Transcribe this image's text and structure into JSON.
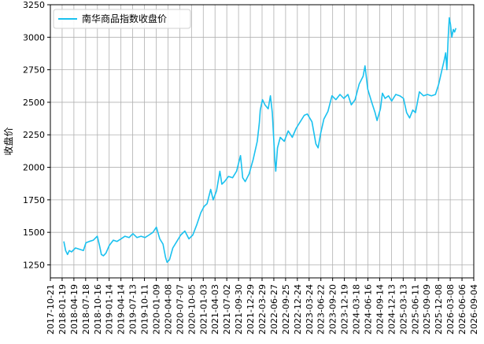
{
  "chart_data": {
    "type": "line",
    "title": "",
    "xlabel": "",
    "ylabel": "收盘价",
    "ylim": [
      1150,
      3250
    ],
    "y_ticks": [
      1250,
      1500,
      1750,
      2000,
      2250,
      2500,
      2750,
      3000,
      3250
    ],
    "x_ticks": [
      "2017-10-21",
      "2018-01-19",
      "2018-04-19",
      "2018-07-18",
      "2018-10-16",
      "2019-01-14",
      "2019-04-14",
      "2019-07-13",
      "2019-10-11",
      "2020-01-09",
      "2020-04-08",
      "2020-07-07",
      "2020-10-05",
      "2021-01-03",
      "2021-04-03",
      "2021-07-02",
      "2021-09-30",
      "2021-12-29",
      "2022-03-29",
      "2022-06-27",
      "2022-09-25",
      "2022-12-24",
      "2023-03-24",
      "2023-06-22",
      "2023-09-20",
      "2023-12-19",
      "2024-03-18",
      "2024-06-16",
      "2024-09-14",
      "2024-12-13",
      "2025-03-13",
      "2025-06-11",
      "2025-09-09",
      "2025-12-08",
      "2026-03-08",
      "2026-06-06",
      "2026-09-04"
    ],
    "xlim": [
      "2017-10-21",
      "2026-09-04"
    ],
    "grid": true,
    "legend_position": "top-left",
    "series": [
      {
        "name": "南华商品指数收盘价",
        "color": "#1ac1ef",
        "points": [
          [
            "2018-02-01",
            1430
          ],
          [
            "2018-02-15",
            1360
          ],
          [
            "2018-03-01",
            1330
          ],
          [
            "2018-03-15",
            1360
          ],
          [
            "2018-04-01",
            1350
          ],
          [
            "2018-05-01",
            1380
          ],
          [
            "2018-06-01",
            1370
          ],
          [
            "2018-07-01",
            1360
          ],
          [
            "2018-07-20",
            1420
          ],
          [
            "2018-08-15",
            1430
          ],
          [
            "2018-09-15",
            1440
          ],
          [
            "2018-10-15",
            1470
          ],
          [
            "2018-11-01",
            1400
          ],
          [
            "2018-11-15",
            1330
          ],
          [
            "2018-12-01",
            1320
          ],
          [
            "2018-12-20",
            1340
          ],
          [
            "2019-01-15",
            1400
          ],
          [
            "2019-02-15",
            1440
          ],
          [
            "2019-03-15",
            1430
          ],
          [
            "2019-04-15",
            1450
          ],
          [
            "2019-05-15",
            1470
          ],
          [
            "2019-06-15",
            1460
          ],
          [
            "2019-07-15",
            1490
          ],
          [
            "2019-08-15",
            1460
          ],
          [
            "2019-09-15",
            1470
          ],
          [
            "2019-10-15",
            1460
          ],
          [
            "2019-11-15",
            1480
          ],
          [
            "2019-12-15",
            1500
          ],
          [
            "2020-01-10",
            1540
          ],
          [
            "2020-02-05",
            1450
          ],
          [
            "2020-03-01",
            1410
          ],
          [
            "2020-03-20",
            1310
          ],
          [
            "2020-04-01",
            1270
          ],
          [
            "2020-04-20",
            1290
          ],
          [
            "2020-05-15",
            1380
          ],
          [
            "2020-06-15",
            1430
          ],
          [
            "2020-07-15",
            1480
          ],
          [
            "2020-08-15",
            1510
          ],
          [
            "2020-09-15",
            1450
          ],
          [
            "2020-10-15",
            1480
          ],
          [
            "2020-11-15",
            1560
          ],
          [
            "2020-12-15",
            1650
          ],
          [
            "2021-01-10",
            1700
          ],
          [
            "2021-02-01",
            1720
          ],
          [
            "2021-03-01",
            1830
          ],
          [
            "2021-03-20",
            1750
          ],
          [
            "2021-04-15",
            1820
          ],
          [
            "2021-05-10",
            1970
          ],
          [
            "2021-05-25",
            1870
          ],
          [
            "2021-06-15",
            1890
          ],
          [
            "2021-07-15",
            1930
          ],
          [
            "2021-08-15",
            1920
          ],
          [
            "2021-09-15",
            1970
          ],
          [
            "2021-10-15",
            2090
          ],
          [
            "2021-11-01",
            1920
          ],
          [
            "2021-11-20",
            1890
          ],
          [
            "2021-12-20",
            1950
          ],
          [
            "2022-01-20",
            2060
          ],
          [
            "2022-02-20",
            2200
          ],
          [
            "2022-03-08",
            2340
          ],
          [
            "2022-03-15",
            2440
          ],
          [
            "2022-04-01",
            2520
          ],
          [
            "2022-04-20",
            2480
          ],
          [
            "2022-05-15",
            2450
          ],
          [
            "2022-06-01",
            2550
          ],
          [
            "2022-06-15",
            2420
          ],
          [
            "2022-07-05",
            2050
          ],
          [
            "2022-07-12",
            1970
          ],
          [
            "2022-07-25",
            2150
          ],
          [
            "2022-08-15",
            2230
          ],
          [
            "2022-09-15",
            2200
          ],
          [
            "2022-10-15",
            2280
          ],
          [
            "2022-11-15",
            2230
          ],
          [
            "2022-12-15",
            2300
          ],
          [
            "2023-01-15",
            2350
          ],
          [
            "2023-02-15",
            2400
          ],
          [
            "2023-03-10",
            2410
          ],
          [
            "2023-04-15",
            2350
          ],
          [
            "2023-05-15",
            2180
          ],
          [
            "2023-06-01",
            2150
          ],
          [
            "2023-06-20",
            2260
          ],
          [
            "2023-07-15",
            2370
          ],
          [
            "2023-08-15",
            2430
          ],
          [
            "2023-09-15",
            2550
          ],
          [
            "2023-10-15",
            2520
          ],
          [
            "2023-11-15",
            2560
          ],
          [
            "2023-12-15",
            2530
          ],
          [
            "2024-01-15",
            2560
          ],
          [
            "2024-02-10",
            2480
          ],
          [
            "2024-03-10",
            2520
          ],
          [
            "2024-04-10",
            2640
          ],
          [
            "2024-05-10",
            2700
          ],
          [
            "2024-05-25",
            2780
          ],
          [
            "2024-06-15",
            2600
          ],
          [
            "2024-07-15",
            2500
          ],
          [
            "2024-08-10",
            2420
          ],
          [
            "2024-08-25",
            2360
          ],
          [
            "2024-09-20",
            2450
          ],
          [
            "2024-10-05",
            2570
          ],
          [
            "2024-10-25",
            2530
          ],
          [
            "2024-11-20",
            2550
          ],
          [
            "2024-12-15",
            2510
          ],
          [
            "2025-01-15",
            2560
          ],
          [
            "2025-02-15",
            2550
          ],
          [
            "2025-03-15",
            2530
          ],
          [
            "2025-04-08",
            2420
          ],
          [
            "2025-05-01",
            2380
          ],
          [
            "2025-05-25",
            2440
          ],
          [
            "2025-06-15",
            2420
          ],
          [
            "2025-07-15",
            2580
          ],
          [
            "2025-08-15",
            2550
          ],
          [
            "2025-09-15",
            2560
          ],
          [
            "2025-10-15",
            2550
          ],
          [
            "2025-11-15",
            2560
          ],
          [
            "2025-12-10",
            2640
          ],
          [
            "2026-01-01",
            2740
          ],
          [
            "2026-01-20",
            2820
          ],
          [
            "2026-02-01",
            2880
          ],
          [
            "2026-02-10",
            2750
          ],
          [
            "2026-02-20",
            3000
          ],
          [
            "2026-03-01",
            3150
          ],
          [
            "2026-03-10",
            3100
          ],
          [
            "2026-03-20",
            3000
          ],
          [
            "2026-04-01",
            3060
          ],
          [
            "2026-04-10",
            3040
          ],
          [
            "2026-04-20",
            3070
          ]
        ]
      }
    ]
  }
}
